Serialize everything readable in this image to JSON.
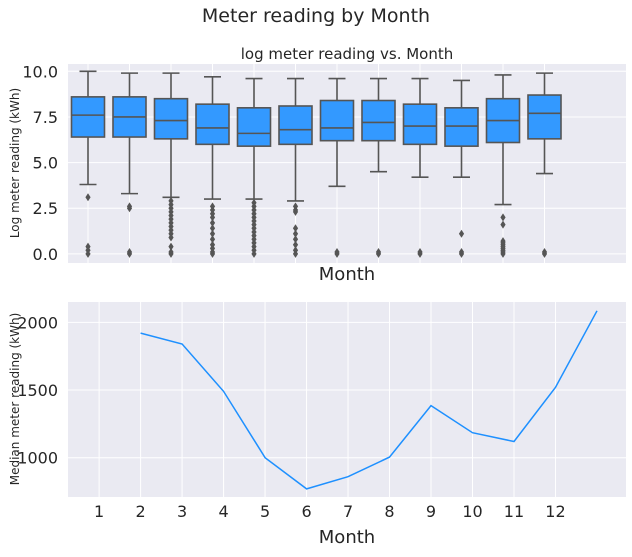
{
  "figure": {
    "suptitle": "Meter reading by Month"
  },
  "chart_data": [
    {
      "type": "box",
      "title": "log meter reading vs. Month",
      "xlabel": "Month",
      "ylabel": "Log meter reading (kWh)",
      "ylim": [
        -0.5,
        10.4
      ],
      "yticks": [
        "0.0",
        "2.5",
        "5.0",
        "7.5",
        "10.0"
      ],
      "ytick_values": [
        0,
        2.5,
        5,
        7.5,
        10
      ],
      "x_tick_labels_shown": false,
      "color": "#3399ff",
      "edge_color": "#555555",
      "categories": [
        1,
        2,
        3,
        4,
        5,
        6,
        7,
        8,
        9,
        10,
        11,
        12
      ],
      "boxes": [
        {
          "month": 1,
          "whislo": 3.8,
          "q1": 6.4,
          "med": 7.6,
          "q3": 8.6,
          "whishi": 10.0,
          "fliers": [
            3.1,
            0.4,
            0.2,
            0.0
          ]
        },
        {
          "month": 2,
          "whislo": 3.3,
          "q1": 6.4,
          "med": 7.5,
          "q3": 8.6,
          "whishi": 9.9,
          "fliers": [
            2.6,
            2.5,
            0.1,
            0.0
          ]
        },
        {
          "month": 3,
          "whislo": 3.1,
          "q1": 6.3,
          "med": 7.3,
          "q3": 8.5,
          "whishi": 9.9,
          "fliers": [
            2.9,
            2.7,
            2.5,
            2.3,
            2.1,
            1.9,
            1.7,
            1.5,
            1.3,
            1.1,
            0.9,
            0.4,
            0.1,
            0.0
          ]
        },
        {
          "month": 4,
          "whislo": 3.0,
          "q1": 6.0,
          "med": 6.9,
          "q3": 8.2,
          "whishi": 9.7,
          "fliers": [
            2.6,
            2.4,
            2.2,
            2.0,
            1.7,
            1.4,
            1.1,
            0.8,
            0.5,
            0.3,
            0.1,
            0.0
          ]
        },
        {
          "month": 5,
          "whislo": 3.0,
          "q1": 5.9,
          "med": 6.6,
          "q3": 8.0,
          "whishi": 9.6,
          "fliers": [
            2.8,
            2.6,
            2.4,
            2.2,
            2.0,
            1.8,
            1.6,
            1.4,
            1.2,
            1.0,
            0.8,
            0.6,
            0.4,
            0.2,
            0.0
          ]
        },
        {
          "month": 6,
          "whislo": 2.9,
          "q1": 6.0,
          "med": 6.8,
          "q3": 8.1,
          "whishi": 9.6,
          "fliers": [
            2.6,
            2.4,
            2.3,
            1.4,
            1.1,
            0.8,
            0.5,
            0.2,
            0.0
          ]
        },
        {
          "month": 7,
          "whislo": 3.7,
          "q1": 6.2,
          "med": 6.9,
          "q3": 8.4,
          "whishi": 9.6,
          "fliers": [
            0.1,
            0.0
          ]
        },
        {
          "month": 8,
          "whislo": 4.5,
          "q1": 6.2,
          "med": 7.2,
          "q3": 8.4,
          "whishi": 9.6,
          "fliers": [
            0.1,
            0.0
          ]
        },
        {
          "month": 9,
          "whislo": 4.2,
          "q1": 6.0,
          "med": 7.0,
          "q3": 8.2,
          "whishi": 9.6,
          "fliers": [
            0.1,
            0.0
          ]
        },
        {
          "month": 10,
          "whislo": 4.2,
          "q1": 5.9,
          "med": 7.0,
          "q3": 8.0,
          "whishi": 9.5,
          "fliers": [
            1.1,
            0.1,
            0.0
          ]
        },
        {
          "month": 11,
          "whislo": 2.7,
          "q1": 6.1,
          "med": 7.3,
          "q3": 8.5,
          "whishi": 9.8,
          "fliers": [
            2.0,
            1.6,
            0.7,
            0.6,
            0.5,
            0.4,
            0.3,
            0.2,
            0.1,
            0.0
          ]
        },
        {
          "month": 12,
          "whislo": 4.4,
          "q1": 6.3,
          "med": 7.7,
          "q3": 8.7,
          "whishi": 9.9,
          "fliers": [
            0.1,
            0.0
          ]
        }
      ]
    },
    {
      "type": "line",
      "xlabel": "Month",
      "ylabel": "Median meter reading (kWh)",
      "color": "#1e90ff",
      "xlim": [
        0.25,
        13.7
      ],
      "ylim": [
        710,
        2150
      ],
      "xticks": [
        1,
        2,
        3,
        4,
        5,
        6,
        7,
        8,
        9,
        10,
        11,
        12
      ],
      "yticks": [
        1000,
        1500,
        2000
      ],
      "x": [
        2,
        3,
        4,
        5,
        6,
        7,
        8,
        9,
        10,
        11,
        12,
        13
      ],
      "y": [
        1920,
        1840,
        1490,
        1000,
        770,
        860,
        1005,
        1385,
        1185,
        1120,
        1520,
        2085
      ]
    }
  ]
}
